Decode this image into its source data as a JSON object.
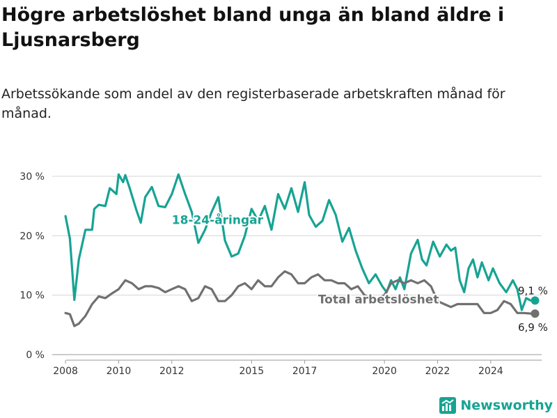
{
  "title": "Högre arbetslöshet bland unga än bland äldre i Ljusnarsberg",
  "subtitle": "Arbetssökande som andel av den registerbaserade arbetskraften månad för månad.",
  "brand": {
    "name": "Newsworthy",
    "icon": "bar-chart-logo-icon"
  },
  "chart_data": {
    "type": "line",
    "title": "Högre arbetslöshet bland unga än bland äldre i Ljusnarsberg",
    "subtitle": "Arbetssökande som andel av den registerbaserade arbetskraften månad för månad.",
    "xlabel": "",
    "ylabel": "",
    "xlim": [
      "2007-07",
      "2025-12"
    ],
    "ylim": [
      0,
      30
    ],
    "grid": true,
    "x_ticks": [
      "2008",
      "2010",
      "2012",
      "2015",
      "2017",
      "2020",
      "2022",
      "2024"
    ],
    "y_ticks": [
      "0 %",
      "10 %",
      "20 %",
      "30 %"
    ],
    "y_tick_values": [
      0,
      10,
      20,
      30
    ],
    "series": [
      {
        "name": "18-24-åringar",
        "color": "#17a393",
        "end_label": "9,1 %",
        "values": [
          [
            "2008-01",
            23.3
          ],
          [
            "2008-03",
            19.5
          ],
          [
            "2008-05",
            9.2
          ],
          [
            "2008-07",
            16.0
          ],
          [
            "2008-10",
            21.0
          ],
          [
            "2009-01",
            21.0
          ],
          [
            "2009-02",
            24.5
          ],
          [
            "2009-04",
            25.2
          ],
          [
            "2009-07",
            25.0
          ],
          [
            "2009-09",
            28.0
          ],
          [
            "2009-12",
            27.0
          ],
          [
            "2010-01",
            30.3
          ],
          [
            "2010-03",
            29.0
          ],
          [
            "2010-04",
            30.2
          ],
          [
            "2010-06",
            28.0
          ],
          [
            "2010-09",
            24.3
          ],
          [
            "2010-11",
            22.2
          ],
          [
            "2011-01",
            26.5
          ],
          [
            "2011-04",
            28.2
          ],
          [
            "2011-07",
            25.0
          ],
          [
            "2011-10",
            24.8
          ],
          [
            "2012-01",
            27.0
          ],
          [
            "2012-04",
            30.3
          ],
          [
            "2012-07",
            27.0
          ],
          [
            "2012-10",
            24.0
          ],
          [
            "2013-01",
            18.8
          ],
          [
            "2013-04",
            21.0
          ],
          [
            "2013-07",
            24.0
          ],
          [
            "2013-10",
            26.5
          ],
          [
            "2014-01",
            19.2
          ],
          [
            "2014-04",
            16.5
          ],
          [
            "2014-07",
            17.0
          ],
          [
            "2014-10",
            20.0
          ],
          [
            "2015-01",
            24.5
          ],
          [
            "2015-04",
            22.5
          ],
          [
            "2015-07",
            25.0
          ],
          [
            "2015-10",
            21.0
          ],
          [
            "2016-01",
            27.0
          ],
          [
            "2016-04",
            24.5
          ],
          [
            "2016-07",
            28.0
          ],
          [
            "2016-10",
            24.0
          ],
          [
            "2017-01",
            29.0
          ],
          [
            "2017-03",
            23.5
          ],
          [
            "2017-06",
            21.5
          ],
          [
            "2017-09",
            22.5
          ],
          [
            "2017-12",
            26.0
          ],
          [
            "2018-03",
            23.5
          ],
          [
            "2018-06",
            19.0
          ],
          [
            "2018-09",
            21.3
          ],
          [
            "2018-12",
            17.5
          ],
          [
            "2019-03",
            14.5
          ],
          [
            "2019-06",
            12.0
          ],
          [
            "2019-09",
            13.5
          ],
          [
            "2019-12",
            11.5
          ],
          [
            "2020-02",
            10.5
          ],
          [
            "2020-04",
            12.5
          ],
          [
            "2020-06",
            11.0
          ],
          [
            "2020-08",
            13.0
          ],
          [
            "2020-10",
            11.0
          ],
          [
            "2021-01",
            17.0
          ],
          [
            "2021-04",
            19.3
          ],
          [
            "2021-06",
            16.0
          ],
          [
            "2021-08",
            15.0
          ],
          [
            "2021-11",
            19.0
          ],
          [
            "2022-02",
            16.5
          ],
          [
            "2022-05",
            18.5
          ],
          [
            "2022-07",
            17.5
          ],
          [
            "2022-09",
            18.0
          ],
          [
            "2022-11",
            12.5
          ],
          [
            "2023-01",
            10.5
          ],
          [
            "2023-03",
            14.5
          ],
          [
            "2023-05",
            16.0
          ],
          [
            "2023-07",
            13.0
          ],
          [
            "2023-09",
            15.5
          ],
          [
            "2023-12",
            12.5
          ],
          [
            "2024-02",
            14.5
          ],
          [
            "2024-05",
            12.0
          ],
          [
            "2024-08",
            10.5
          ],
          [
            "2024-11",
            12.5
          ],
          [
            "2025-01",
            11.0
          ],
          [
            "2025-03",
            7.5
          ],
          [
            "2025-05",
            9.5
          ],
          [
            "2025-07",
            9.1
          ],
          [
            "2025-09",
            9.1
          ]
        ]
      },
      {
        "name": "Total arbetslöshet",
        "color": "#707070",
        "end_label": "6,9 %",
        "values": [
          [
            "2008-01",
            7.0
          ],
          [
            "2008-03",
            6.8
          ],
          [
            "2008-05",
            4.8
          ],
          [
            "2008-07",
            5.2
          ],
          [
            "2008-10",
            6.5
          ],
          [
            "2009-01",
            8.5
          ],
          [
            "2009-04",
            9.8
          ],
          [
            "2009-07",
            9.5
          ],
          [
            "2009-10",
            10.3
          ],
          [
            "2010-01",
            11.0
          ],
          [
            "2010-04",
            12.5
          ],
          [
            "2010-07",
            12.0
          ],
          [
            "2010-10",
            11.0
          ],
          [
            "2011-01",
            11.5
          ],
          [
            "2011-04",
            11.5
          ],
          [
            "2011-07",
            11.2
          ],
          [
            "2011-10",
            10.5
          ],
          [
            "2012-01",
            11.0
          ],
          [
            "2012-04",
            11.5
          ],
          [
            "2012-07",
            11.0
          ],
          [
            "2012-10",
            9.0
          ],
          [
            "2013-01",
            9.5
          ],
          [
            "2013-04",
            11.5
          ],
          [
            "2013-07",
            11.0
          ],
          [
            "2013-10",
            9.0
          ],
          [
            "2014-01",
            9.0
          ],
          [
            "2014-04",
            10.0
          ],
          [
            "2014-07",
            11.5
          ],
          [
            "2014-10",
            12.0
          ],
          [
            "2015-01",
            11.0
          ],
          [
            "2015-04",
            12.5
          ],
          [
            "2015-07",
            11.5
          ],
          [
            "2015-10",
            11.5
          ],
          [
            "2016-01",
            13.0
          ],
          [
            "2016-04",
            14.0
          ],
          [
            "2016-07",
            13.5
          ],
          [
            "2016-10",
            12.0
          ],
          [
            "2017-01",
            12.0
          ],
          [
            "2017-04",
            13.0
          ],
          [
            "2017-07",
            13.5
          ],
          [
            "2017-10",
            12.5
          ],
          [
            "2018-01",
            12.5
          ],
          [
            "2018-04",
            12.0
          ],
          [
            "2018-07",
            12.0
          ],
          [
            "2018-10",
            11.0
          ],
          [
            "2019-01",
            11.5
          ],
          [
            "2019-04",
            10.0
          ],
          [
            "2019-07",
            9.5
          ],
          [
            "2019-10",
            9.5
          ],
          [
            "2020-01",
            10.0
          ],
          [
            "2020-04",
            12.0
          ],
          [
            "2020-07",
            12.5
          ],
          [
            "2020-10",
            12.0
          ],
          [
            "2021-01",
            12.5
          ],
          [
            "2021-04",
            12.0
          ],
          [
            "2021-07",
            12.5
          ],
          [
            "2021-10",
            11.5
          ],
          [
            "2022-01",
            9.0
          ],
          [
            "2022-04",
            8.5
          ],
          [
            "2022-07",
            8.0
          ],
          [
            "2022-10",
            8.5
          ],
          [
            "2023-01",
            8.5
          ],
          [
            "2023-04",
            8.5
          ],
          [
            "2023-07",
            8.5
          ],
          [
            "2023-10",
            7.0
          ],
          [
            "2024-01",
            7.0
          ],
          [
            "2024-04",
            7.5
          ],
          [
            "2024-07",
            9.0
          ],
          [
            "2024-10",
            8.5
          ],
          [
            "2025-01",
            7.0
          ],
          [
            "2025-04",
            7.0
          ],
          [
            "2025-07",
            6.9
          ],
          [
            "2025-09",
            6.9
          ]
        ]
      }
    ]
  }
}
